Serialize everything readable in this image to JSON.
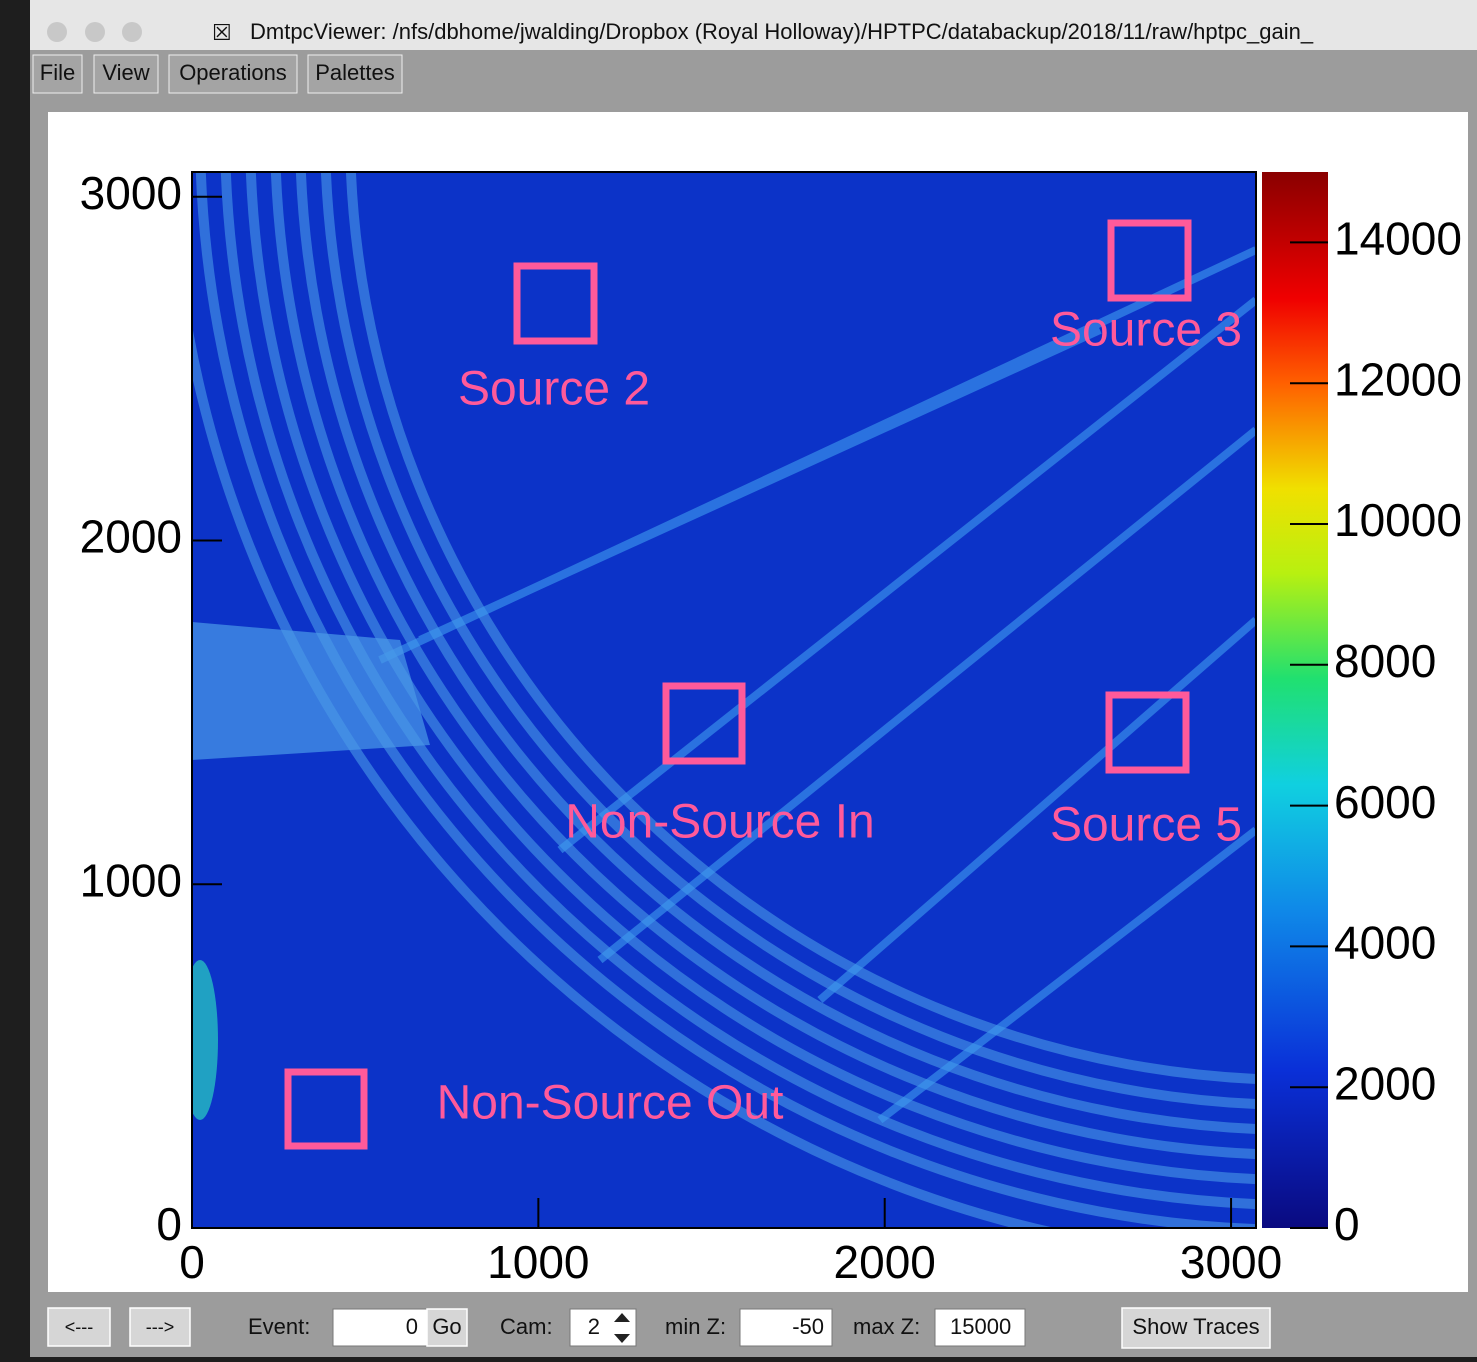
{
  "window": {
    "title": "DmtpcViewer: /nfs/dbhome/jwalding/Dropbox (Royal Holloway)/HPTPC/databackup/2018/11/raw/hptpc_gain_"
  },
  "menu": [
    "File",
    "View",
    "Operations",
    "Palettes"
  ],
  "chart_data": {
    "type": "heatmap",
    "xlim": [
      0,
      3072
    ],
    "ylim": [
      0,
      3072
    ],
    "xticks": [
      0,
      1000,
      2000,
      3000
    ],
    "yticks": [
      0,
      1000,
      2000,
      3000
    ],
    "zlim": [
      0,
      15000
    ],
    "zticks": [
      0,
      2000,
      4000,
      6000,
      8000,
      10000,
      12000,
      14000
    ],
    "annotations": [
      "Source 2",
      "Source 3",
      "Non-Source In",
      "Source 5",
      "Non-Source Out"
    ]
  },
  "controls": {
    "prev": "<---",
    "next": "--->",
    "event_label": "Event:",
    "event_value": "0",
    "go": "Go",
    "cam_label": "Cam:",
    "cam_value": "2",
    "minz_label": "min Z:",
    "minz_value": "-50",
    "maxz_label": "max Z:",
    "maxz_value": "15000",
    "show_traces": "Show Traces"
  }
}
